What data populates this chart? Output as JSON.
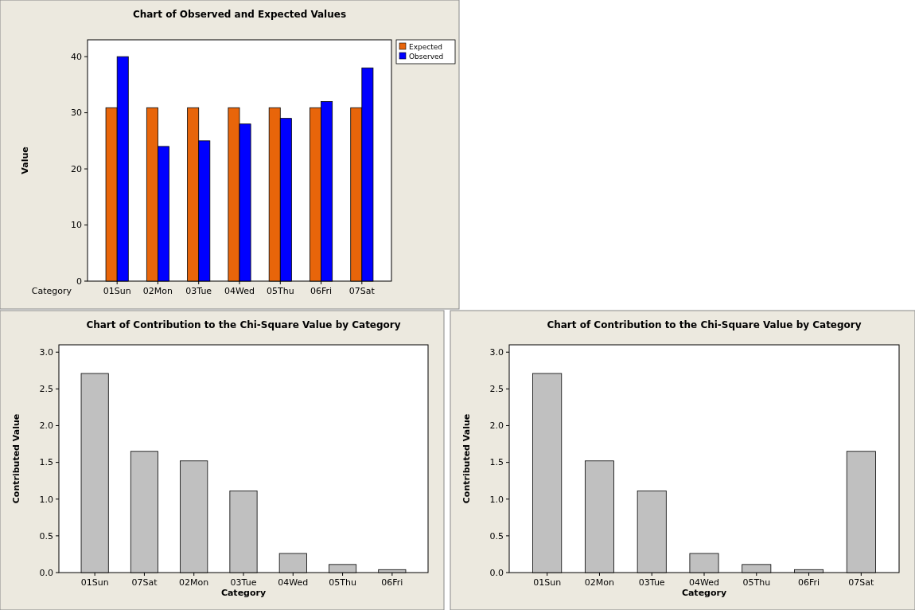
{
  "chart_data": [
    {
      "type": "bar",
      "title": "Chart of Observed and Expected Values",
      "xlabel": "Category",
      "ylabel": "Value",
      "categories": [
        "01Sun",
        "02Mon",
        "03Tue",
        "04Wed",
        "05Thu",
        "06Fri",
        "07Sat"
      ],
      "series": [
        {
          "name": "Expected",
          "color": "#e8650a",
          "values": [
            30.9,
            30.9,
            30.9,
            30.9,
            30.9,
            30.9,
            30.9
          ]
        },
        {
          "name": "Observed",
          "color": "#0000ff",
          "values": [
            40,
            24,
            25,
            28,
            29,
            32,
            38
          ]
        }
      ],
      "ylim": [
        0,
        43
      ],
      "yticks": [
        0,
        10,
        20,
        30,
        40
      ],
      "legend": "top right",
      "grid": false
    },
    {
      "type": "bar",
      "title": "Chart of Contribution to the Chi-Square Value by Category",
      "xlabel": "Category",
      "ylabel": "Contributed Value",
      "categories": [
        "01Sun",
        "07Sat",
        "02Mon",
        "03Tue",
        "04Wed",
        "05Thu",
        "06Fri"
      ],
      "series": [
        {
          "color": "#c0c0c0",
          "values": [
            2.71,
            1.65,
            1.52,
            1.11,
            0.26,
            0.11,
            0.04
          ]
        }
      ],
      "ylim": [
        0,
        3.1
      ],
      "yticks": [
        {
          "value": 0,
          "label": "0.0"
        },
        {
          "value": 0.5,
          "label": "0.5"
        },
        {
          "value": 1,
          "label": "1.0"
        },
        {
          "value": 1.5,
          "label": "1.5"
        },
        {
          "value": 2,
          "label": "2.0"
        },
        {
          "value": 2.5,
          "label": "2.5"
        },
        {
          "value": 3,
          "label": "3.0"
        }
      ],
      "grid": false
    },
    {
      "type": "bar",
      "title": "Chart of Contribution to the Chi-Square Value by Category",
      "xlabel": "Category",
      "ylabel": "Contributed Value",
      "categories": [
        "01Sun",
        "02Mon",
        "03Tue",
        "04Wed",
        "05Thu",
        "06Fri",
        "07Sat"
      ],
      "series": [
        {
          "color": "#c0c0c0",
          "values": [
            2.71,
            1.52,
            1.11,
            0.26,
            0.11,
            0.04,
            1.65
          ]
        }
      ],
      "ylim": [
        0,
        3.1
      ],
      "yticks": [
        {
          "value": 0,
          "label": "0.0"
        },
        {
          "value": 0.5,
          "label": "0.5"
        },
        {
          "value": 1,
          "label": "1.0"
        },
        {
          "value": 1.5,
          "label": "1.5"
        },
        {
          "value": 2,
          "label": "2.0"
        },
        {
          "value": 2.5,
          "label": "2.5"
        },
        {
          "value": 3,
          "label": "3.0"
        }
      ],
      "grid": false
    }
  ]
}
